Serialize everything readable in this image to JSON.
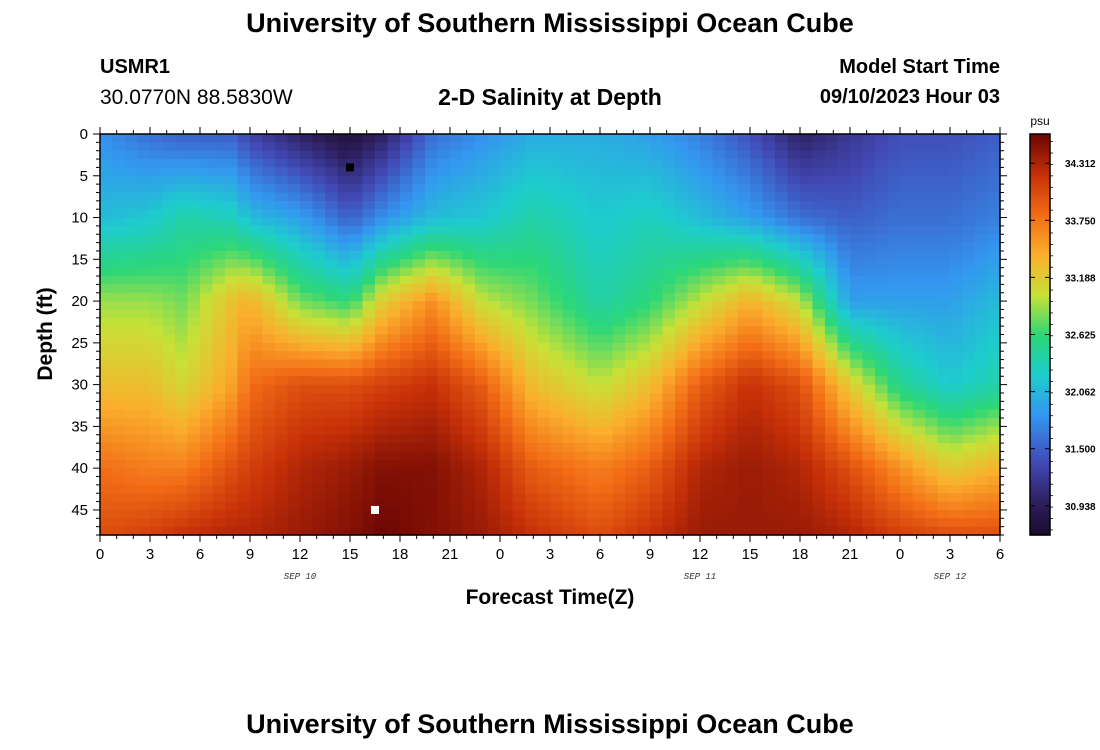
{
  "header": {
    "title": "University of Southern Mississippi Ocean Cube",
    "station_id": "USMR1",
    "station_coords": "30.0770N  88.5830W",
    "plot_title": "2-D Salinity at Depth",
    "start_label": "Model Start Time",
    "start_value": "09/10/2023 Hour 03"
  },
  "footer": {
    "title": "University of Southern Mississippi Ocean Cube"
  },
  "colors": {
    "frame": "#000000",
    "min_marker": "#000000",
    "max_marker": "#ffffff"
  },
  "chart_data": {
    "type": "heatmap",
    "title": "2-D Salinity at Depth",
    "xlabel": "Forecast Time(Z)",
    "ylabel": "Depth (ft)",
    "xlim": [
      0,
      54
    ],
    "ylim": [
      0,
      48
    ],
    "x_ticks": [
      0,
      3,
      6,
      9,
      12,
      15,
      18,
      21,
      24,
      27,
      30,
      33,
      36,
      39,
      42,
      45,
      48,
      51,
      54
    ],
    "x_tick_labels": [
      "0",
      "3",
      "6",
      "9",
      "12",
      "15",
      "18",
      "21",
      "0",
      "3",
      "6",
      "9",
      "12",
      "15",
      "18",
      "21",
      "0",
      "3",
      "6"
    ],
    "y_ticks": [
      0,
      5,
      10,
      15,
      20,
      25,
      30,
      35,
      40,
      45
    ],
    "y_tick_labels": [
      "0",
      "5",
      "10",
      "15",
      "20",
      "25",
      "30",
      "35",
      "40",
      "45"
    ],
    "date_labels": [
      {
        "x": 12,
        "label": "SEP 10"
      },
      {
        "x": 36,
        "label": "SEP 11"
      },
      {
        "x": 51,
        "label": "SEP 12"
      }
    ],
    "colorbar": {
      "units": "psu",
      "min": 30.65,
      "max": 34.6,
      "ticks": [
        30.938,
        31.5,
        32.062,
        32.625,
        33.188,
        33.75,
        34.312
      ],
      "tick_labels": [
        "30.938",
        "31.500",
        "32.062",
        "32.625",
        "33.188",
        "33.750",
        "34.312"
      ]
    },
    "depths_ft": [
      0,
      10,
      20,
      30,
      40,
      48
    ],
    "profiles": [
      {
        "x": 0,
        "values": [
          31.8,
          32.1,
          32.9,
          33.3,
          33.8,
          34.0
        ]
      },
      {
        "x": 3,
        "values": [
          31.6,
          32.2,
          32.9,
          33.3,
          33.7,
          34.1
        ]
      },
      {
        "x": 5,
        "values": [
          31.5,
          32.4,
          32.8,
          33.1,
          33.7,
          34.2
        ]
      },
      {
        "x": 8,
        "values": [
          31.5,
          32.3,
          33.3,
          33.5,
          34.0,
          34.3
        ]
      },
      {
        "x": 9,
        "values": [
          31.3,
          32.1,
          33.4,
          33.8,
          34.1,
          34.3
        ]
      },
      {
        "x": 12,
        "values": [
          31.0,
          31.9,
          32.8,
          34.0,
          34.3,
          34.4
        ]
      },
      {
        "x": 15,
        "values": [
          30.75,
          31.5,
          32.6,
          34.0,
          34.4,
          34.5
        ]
      },
      {
        "x": 17,
        "values": [
          31.0,
          31.8,
          33.2,
          34.1,
          34.5,
          34.6
        ]
      },
      {
        "x": 20,
        "values": [
          31.6,
          32.1,
          33.6,
          34.2,
          34.5,
          34.5
        ]
      },
      {
        "x": 23,
        "values": [
          31.8,
          32.2,
          33.0,
          33.9,
          34.3,
          34.4
        ]
      },
      {
        "x": 26,
        "values": [
          32.0,
          32.4,
          32.8,
          33.3,
          33.9,
          34.2
        ]
      },
      {
        "x": 30,
        "values": [
          32.0,
          32.2,
          32.4,
          33.0,
          33.7,
          34.0
        ]
      },
      {
        "x": 33,
        "values": [
          31.9,
          32.3,
          32.6,
          33.3,
          33.9,
          34.2
        ]
      },
      {
        "x": 36,
        "values": [
          31.7,
          32.1,
          33.0,
          33.9,
          34.3,
          34.4
        ]
      },
      {
        "x": 39,
        "values": [
          31.4,
          31.9,
          33.4,
          34.2,
          34.4,
          34.4
        ]
      },
      {
        "x": 42,
        "values": [
          31.0,
          31.6,
          33.0,
          34.0,
          34.3,
          34.4
        ]
      },
      {
        "x": 45,
        "values": [
          31.2,
          31.5,
          31.9,
          33.2,
          34.0,
          34.3
        ]
      },
      {
        "x": 48,
        "values": [
          31.4,
          31.6,
          31.9,
          32.5,
          33.6,
          34.1
        ]
      },
      {
        "x": 51,
        "values": [
          31.4,
          31.6,
          31.9,
          32.2,
          33.2,
          34.0
        ]
      },
      {
        "x": 54,
        "values": [
          31.5,
          31.7,
          32.1,
          32.4,
          33.4,
          34.0
        ]
      }
    ],
    "min_marker": {
      "x": 15,
      "depth": 4
    },
    "max_marker": {
      "x": 16.5,
      "depth": 45
    }
  }
}
